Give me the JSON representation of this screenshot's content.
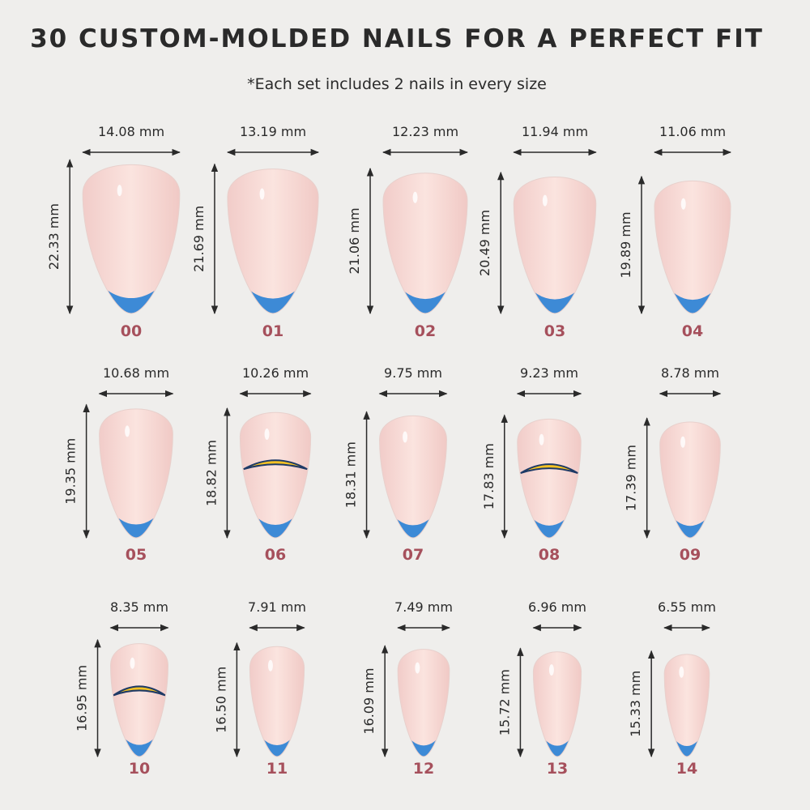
{
  "header": {
    "title": "30 CUSTOM-MOLDED NAILS FOR A PERFECT FIT",
    "subtitle": "*Each set includes 2 nails in every size"
  },
  "nails": [
    {
      "size": "00",
      "width": "14.08 mm",
      "length": "22.33 mm"
    },
    {
      "size": "01",
      "width": "13.19 mm",
      "length": "21.69 mm"
    },
    {
      "size": "02",
      "width": "12.23 mm",
      "length": "21.06 mm"
    },
    {
      "size": "03",
      "width": "11.94 mm",
      "length": "20.49 mm"
    },
    {
      "size": "04",
      "width": "11.06 mm",
      "length": "19.89 mm"
    },
    {
      "size": "05",
      "width": "10.68 mm",
      "length": "19.35 mm"
    },
    {
      "size": "06",
      "width": "10.26 mm",
      "length": "18.82 mm"
    },
    {
      "size": "07",
      "width": "9.75 mm",
      "length": "18.31 mm"
    },
    {
      "size": "08",
      "width": "9.23 mm",
      "length": "17.83 mm"
    },
    {
      "size": "09",
      "width": "8.78 mm",
      "length": "17.39 mm"
    },
    {
      "size": "10",
      "width": "8.35 mm",
      "length": "16.95 mm"
    },
    {
      "size": "11",
      "width": "7.91 mm",
      "length": "16.50 mm"
    },
    {
      "size": "12",
      "width": "7.49 mm",
      "length": "16.09 mm"
    },
    {
      "size": "13",
      "width": "6.96 mm",
      "length": "15.72 mm"
    },
    {
      "size": "14",
      "width": "6.55 mm",
      "length": "15.33 mm"
    }
  ]
}
